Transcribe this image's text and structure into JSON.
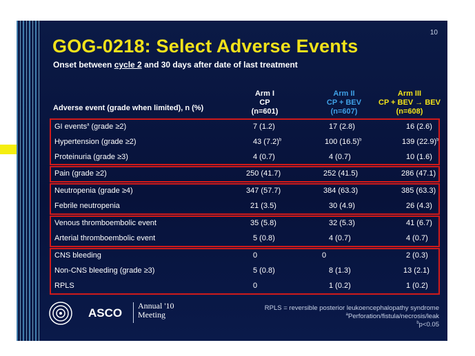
{
  "slide": {
    "number": "10",
    "title": "GOG-0218: Select Adverse Events",
    "subtitle_pre": "Onset between ",
    "subtitle_underlined": "cycle 2",
    "subtitle_post": " and 30 days after date of last treatment"
  },
  "headers": {
    "adverse_event": "Adverse event  (grade when limited), n (%)",
    "arm1": [
      "Arm I",
      "CP",
      "(n=601)"
    ],
    "arm2": [
      "Arm II",
      "CP + BEV",
      "(n=607)"
    ],
    "arm3": [
      "Arm III",
      "CP + BEV → BEV",
      "(n=608)"
    ]
  },
  "rows": [
    {
      "label": "GI events",
      "label_sup": "a",
      "label_post": " (grade ≥2)",
      "arm1": "7 (1.2)",
      "arm2": "17 (2.8)",
      "arm3": "16 (2.6)"
    },
    {
      "label": "Hypertension (grade ≥2)",
      "arm1": "43 (7.2)",
      "arm1_sup": "b",
      "arm2": "100 (16.5)",
      "arm2_sup": "b",
      "arm3": "139 (22.9)",
      "arm3_sup": "b"
    },
    {
      "label": "Proteinuria (grade ≥3)",
      "arm1": "4 (0.7)",
      "arm2": "4 (0.7)",
      "arm3": "10 (1.6)"
    },
    {
      "label": "Pain (grade ≥2)",
      "arm1": "250 (41.7)",
      "arm2": "252 (41.5)",
      "arm3": "286 (47.1)"
    },
    {
      "label": "Neutropenia (grade ≥4)",
      "arm1": "347 (57.7)",
      "arm2": "384 (63.3)",
      "arm3": "385 (63.3)"
    },
    {
      "label": "Febrile neutropenia",
      "arm1": "21 (3.5)",
      "arm2": "30 (4.9)",
      "arm3": "26 (4.3)"
    },
    {
      "label": "Venous thromboembolic event",
      "arm1": "35 (5.8)",
      "arm2": "32 (5.3)",
      "arm3": "41 (6.7)"
    },
    {
      "label": "Arterial thromboembolic event",
      "arm1": "5 (0.8)",
      "arm2": "4 (0.7)",
      "arm3": "4 (0.7)"
    },
    {
      "label": "CNS bleeding",
      "arm1": "0",
      "arm2": "0",
      "arm3": "2 (0.3)"
    },
    {
      "label": "Non-CNS bleeding (grade ≥3)",
      "arm1": "5 (0.8)",
      "arm2": "8 (1.3)",
      "arm3": "13 (2.1)"
    },
    {
      "label": "RPLS",
      "arm1": "0",
      "arm2": "1 (0.2)",
      "arm3": "1 (0.2)"
    }
  ],
  "footnotes": {
    "rpls": "RPLS = reversible posterior leukoencephalopathy syndrome",
    "a_sup": "a",
    "a": "Perforation/fistula/necrosis/leak",
    "b_sup": "b",
    "b": "p<0.05"
  },
  "logo": {
    "asco": "ASCO",
    "annual_line1": "Annual '10",
    "annual_line2": "Meeting"
  },
  "colors": {
    "background": "#08153a",
    "title": "#f2e21a",
    "arm2": "#3fa0e6",
    "arm3": "#f2e21a",
    "box_border": "#d01a1a",
    "arrow": "#f5ee10"
  },
  "icons": [
    "yellow-arrow-icon",
    "asco-logo-icon"
  ]
}
